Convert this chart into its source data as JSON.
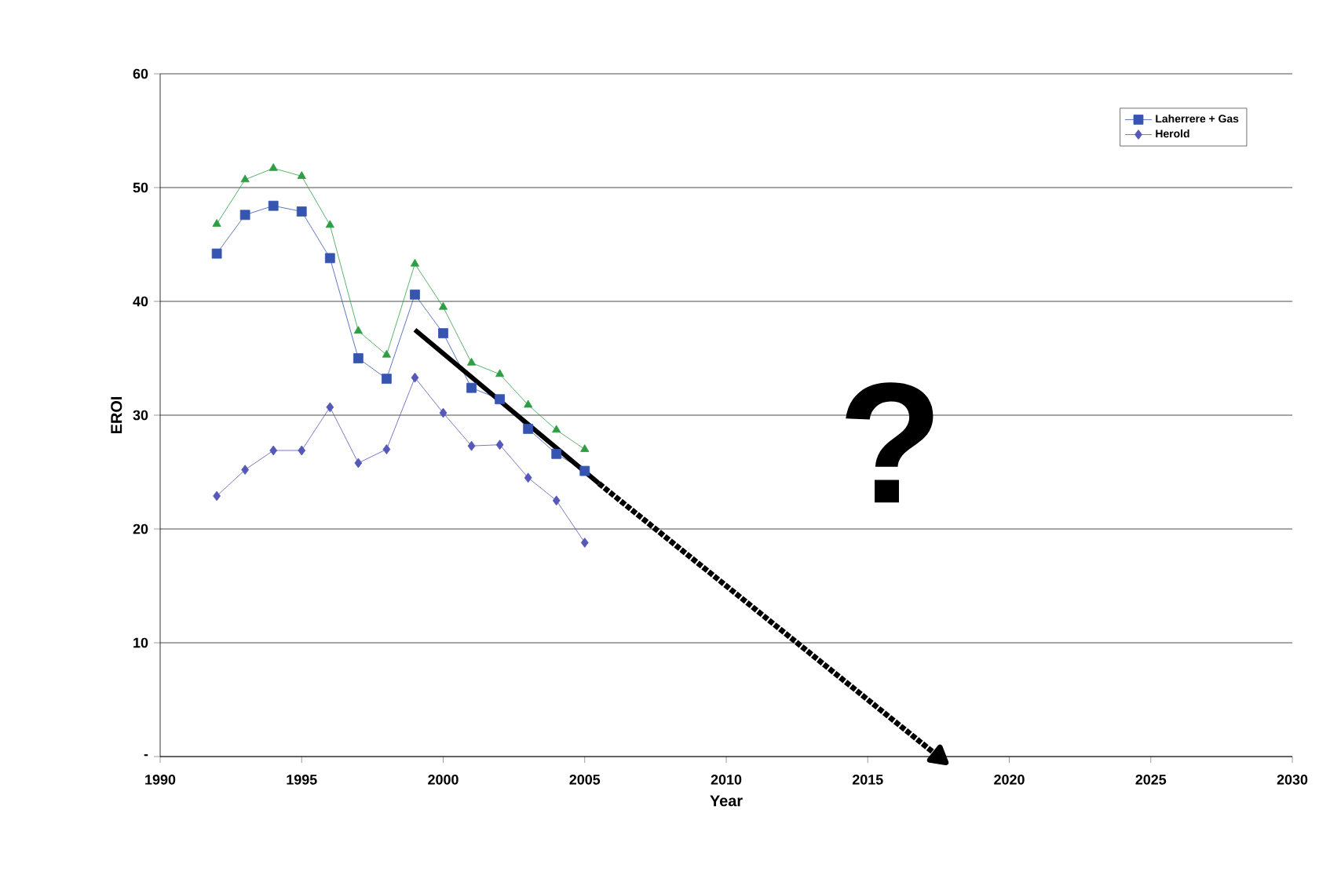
{
  "chart_data": {
    "type": "line",
    "xlabel": "Year",
    "ylabel": "EROI",
    "x": [
      1992,
      1993,
      1994,
      1995,
      1996,
      1997,
      1998,
      1999,
      2000,
      2001,
      2002,
      2003,
      2004,
      2005
    ],
    "xlim": [
      1990,
      2030
    ],
    "xticks": [
      1990,
      1995,
      2000,
      2005,
      2010,
      2015,
      2020,
      2025,
      2030
    ],
    "ylim": [
      0,
      60
    ],
    "yticks": [
      {
        "value": 0,
        "label": "-"
      },
      10,
      20,
      30,
      40,
      50,
      60
    ],
    "grid": "y",
    "legend": "top right",
    "series": [
      {
        "color": "#2e9e44",
        "marker": "triangle",
        "values": [
          46.8,
          50.7,
          51.7,
          51.0,
          46.7,
          37.4,
          35.3,
          43.3,
          39.5,
          34.6,
          33.6,
          30.9,
          28.7,
          27.0
        ]
      },
      {
        "name": "Laherrere + Gas",
        "color": "#3555b0",
        "marker": "square",
        "values": [
          44.2,
          47.6,
          48.4,
          47.9,
          43.8,
          35.0,
          33.2,
          40.6,
          37.2,
          32.4,
          31.4,
          28.8,
          26.6,
          25.1
        ]
      },
      {
        "name": "Herold",
        "color": "#5558b8",
        "marker": "diamond",
        "values": [
          22.9,
          25.2,
          26.9,
          26.9,
          30.7,
          25.8,
          27.0,
          33.3,
          30.2,
          27.3,
          27.4,
          24.5,
          22.5,
          18.8
        ]
      },
      {
        "color": "#000000",
        "marker": "none",
        "line_style": "solid",
        "x": [
          1999,
          2005.5
        ],
        "values": [
          37.5,
          24.0
        ]
      },
      {
        "color": "#000000",
        "marker": "triangle",
        "line_style": "dotted",
        "x": [
          2005.5,
          2017.5
        ],
        "values": [
          24.0,
          0
        ]
      }
    ],
    "annotations": [
      "?"
    ]
  }
}
